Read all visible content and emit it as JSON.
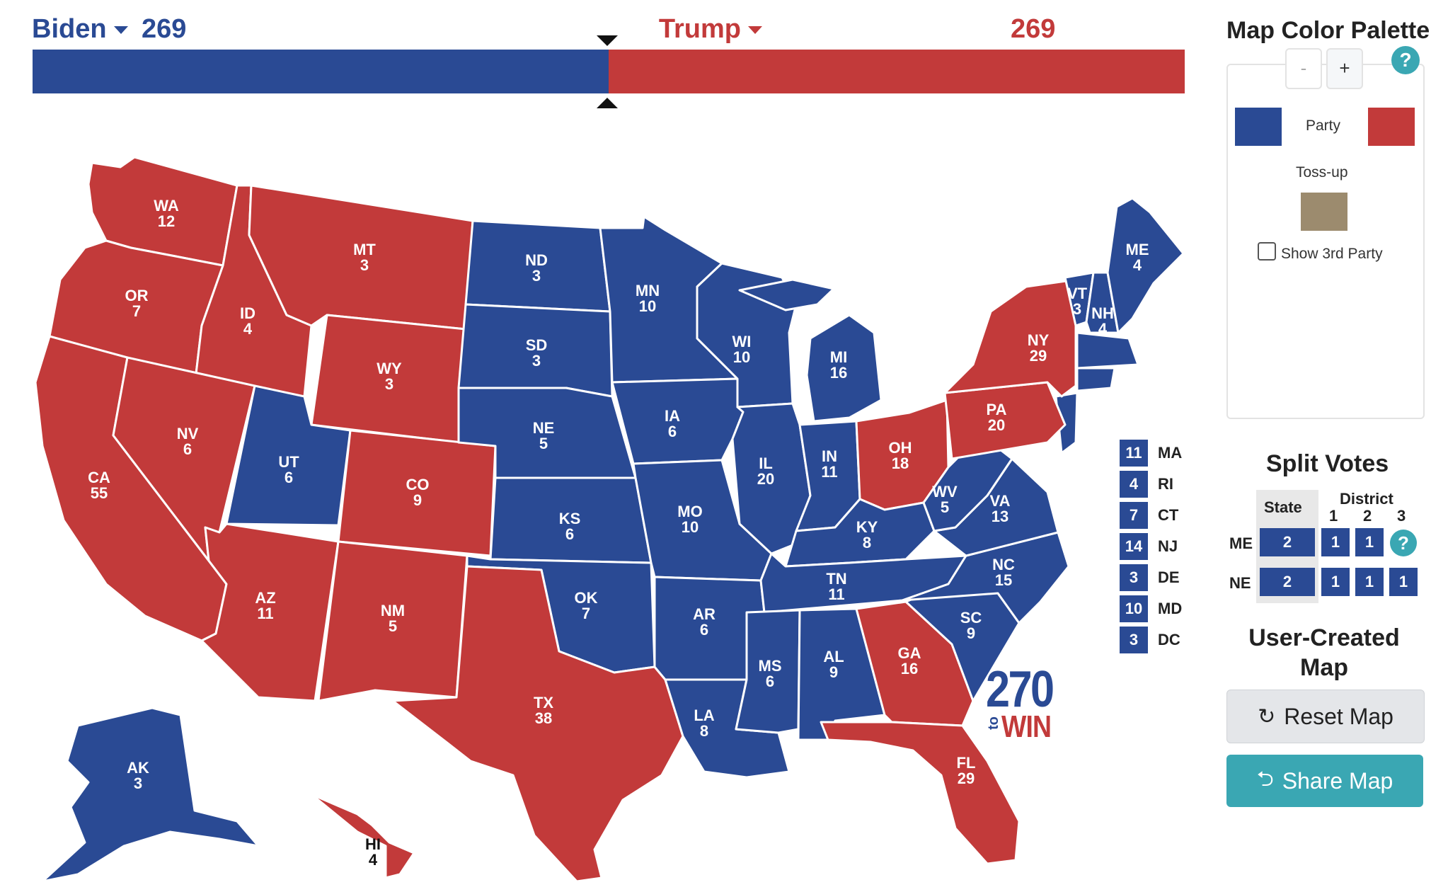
{
  "header": {
    "dem": {
      "name": "Biden",
      "votes": "269",
      "share": 0.5,
      "color": "#2a4a94"
    },
    "rep": {
      "name": "Trump",
      "votes": "269",
      "share": 0.5,
      "color": "#c23a3a"
    }
  },
  "colors": {
    "dem": "#2a4a94",
    "rep": "#c23a3a",
    "tossup": "#9c8b6e"
  },
  "states": [
    {
      "abbr": "WA",
      "ev": "12",
      "party": "R"
    },
    {
      "abbr": "OR",
      "ev": "7",
      "party": "R"
    },
    {
      "abbr": "CA",
      "ev": "55",
      "party": "R"
    },
    {
      "abbr": "ID",
      "ev": "4",
      "party": "R"
    },
    {
      "abbr": "NV",
      "ev": "6",
      "party": "R"
    },
    {
      "abbr": "MT",
      "ev": "3",
      "party": "R"
    },
    {
      "abbr": "WY",
      "ev": "3",
      "party": "R"
    },
    {
      "abbr": "UT",
      "ev": "6",
      "party": "D"
    },
    {
      "abbr": "CO",
      "ev": "9",
      "party": "R"
    },
    {
      "abbr": "AZ",
      "ev": "11",
      "party": "R"
    },
    {
      "abbr": "NM",
      "ev": "5",
      "party": "R"
    },
    {
      "abbr": "ND",
      "ev": "3",
      "party": "D"
    },
    {
      "abbr": "SD",
      "ev": "3",
      "party": "D"
    },
    {
      "abbr": "NE",
      "ev": "5",
      "party": "D"
    },
    {
      "abbr": "KS",
      "ev": "6",
      "party": "D"
    },
    {
      "abbr": "OK",
      "ev": "7",
      "party": "D"
    },
    {
      "abbr": "TX",
      "ev": "38",
      "party": "R"
    },
    {
      "abbr": "MN",
      "ev": "10",
      "party": "D"
    },
    {
      "abbr": "IA",
      "ev": "6",
      "party": "D"
    },
    {
      "abbr": "MO",
      "ev": "10",
      "party": "D"
    },
    {
      "abbr": "AR",
      "ev": "6",
      "party": "D"
    },
    {
      "abbr": "LA",
      "ev": "8",
      "party": "D"
    },
    {
      "abbr": "WI",
      "ev": "10",
      "party": "D"
    },
    {
      "abbr": "IL",
      "ev": "20",
      "party": "D"
    },
    {
      "abbr": "MI",
      "ev": "16",
      "party": "D"
    },
    {
      "abbr": "IN",
      "ev": "11",
      "party": "D"
    },
    {
      "abbr": "OH",
      "ev": "18",
      "party": "R"
    },
    {
      "abbr": "KY",
      "ev": "8",
      "party": "D"
    },
    {
      "abbr": "TN",
      "ev": "11",
      "party": "D"
    },
    {
      "abbr": "MS",
      "ev": "6",
      "party": "D"
    },
    {
      "abbr": "AL",
      "ev": "9",
      "party": "D"
    },
    {
      "abbr": "GA",
      "ev": "16",
      "party": "R"
    },
    {
      "abbr": "FL",
      "ev": "29",
      "party": "R"
    },
    {
      "abbr": "SC",
      "ev": "9",
      "party": "D"
    },
    {
      "abbr": "NC",
      "ev": "15",
      "party": "D"
    },
    {
      "abbr": "VA",
      "ev": "13",
      "party": "D"
    },
    {
      "abbr": "WV",
      "ev": "5",
      "party": "D"
    },
    {
      "abbr": "PA",
      "ev": "20",
      "party": "R"
    },
    {
      "abbr": "NY",
      "ev": "29",
      "party": "R"
    },
    {
      "abbr": "VT",
      "ev": "3",
      "party": "D"
    },
    {
      "abbr": "NH",
      "ev": "4",
      "party": "D"
    },
    {
      "abbr": "ME",
      "ev": "4",
      "party": "D"
    },
    {
      "abbr": "AK",
      "ev": "3",
      "party": "D"
    },
    {
      "abbr": "HI",
      "ev": "4",
      "party": "R"
    }
  ],
  "small_states": [
    {
      "abbr": "MA",
      "ev": "11"
    },
    {
      "abbr": "RI",
      "ev": "4"
    },
    {
      "abbr": "CT",
      "ev": "7"
    },
    {
      "abbr": "NJ",
      "ev": "14"
    },
    {
      "abbr": "DE",
      "ev": "3"
    },
    {
      "abbr": "MD",
      "ev": "10"
    },
    {
      "abbr": "DC",
      "ev": "3"
    }
  ],
  "logo": {
    "number": "270",
    "to": "to",
    "win": "WIN"
  },
  "palette": {
    "title": "Map Color Palette",
    "help": "?",
    "zoom_minus": "-",
    "zoom_plus": "+",
    "party_label": "Party",
    "tossup_label": "Toss-up",
    "third_party_label": "Show 3rd Party"
  },
  "split_votes": {
    "title": "Split Votes",
    "state_header": "State",
    "district_header": "District",
    "district_numbers": [
      "1",
      "2",
      "3"
    ],
    "help": "?",
    "rows": [
      {
        "label": "ME",
        "state": "2",
        "districts": [
          "1",
          "1"
        ]
      },
      {
        "label": "NE",
        "state": "2",
        "districts": [
          "1",
          "1",
          "1"
        ]
      }
    ]
  },
  "map_name": "User-Created Map",
  "buttons": {
    "reset": "Reset Map",
    "share": "Share Map"
  }
}
